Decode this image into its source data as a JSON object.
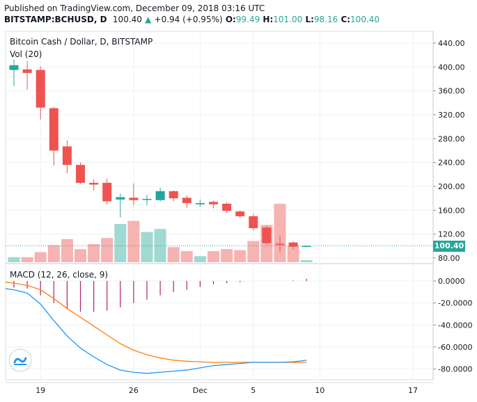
{
  "header": {
    "published": "Published on TradingView.com, December 09, 2018 03:16 UTC",
    "symbol": "BITSTAMP:BCHUSD, D",
    "last": "100.40",
    "change_arrow": "▲",
    "change": "+0.94 (+0.95%)",
    "o_label": "O:",
    "o_value": "99.49",
    "h_label": "H:",
    "h_value": "101.00",
    "l_label": "L:",
    "l_value": "98.16",
    "c_label": "C:",
    "c_value": "100.40"
  },
  "colors": {
    "up": "#26a69a",
    "down": "#ef5350",
    "vol_up": "#9fd9d2",
    "vol_down": "#f7b2b2",
    "macd": "#2196f3",
    "signal": "#ff7f0e",
    "hist": "#b0206a",
    "grid": "#eef0f3"
  },
  "logo_icon": "tradingview-logo-icon",
  "chart_data": [
    {
      "type": "candlestick",
      "title": "Bitcoin Cash / Dollar, D, BITSTAMP",
      "y_ticks": [
        "440.00",
        "400.00",
        "360.00",
        "320.00",
        "280.00",
        "240.00",
        "200.00",
        "160.00",
        "120.00",
        "80.00"
      ],
      "ylim": [
        72,
        448
      ],
      "last_price_label": "100.40",
      "x_ticks": [
        {
          "label": "19",
          "i": 2
        },
        {
          "label": "26",
          "i": 9
        },
        {
          "label": "Dec",
          "i": 14
        },
        {
          "label": "5",
          "i": 18
        },
        {
          "label": "10",
          "i": 23
        },
        {
          "label": "17",
          "i": 30
        }
      ],
      "candles": [
        {
          "date": "2018-11-17",
          "o": 395,
          "h": 412,
          "l": 368,
          "c": 403
        },
        {
          "date": "2018-11-18",
          "o": 396,
          "h": 410,
          "l": 362,
          "c": 390
        },
        {
          "date": "2018-11-19",
          "o": 395,
          "h": 401,
          "l": 312,
          "c": 332
        },
        {
          "date": "2018-11-20",
          "o": 331,
          "h": 333,
          "l": 235,
          "c": 260
        },
        {
          "date": "2018-11-21",
          "o": 267,
          "h": 277,
          "l": 222,
          "c": 236
        },
        {
          "date": "2018-11-22",
          "o": 236,
          "h": 240,
          "l": 204,
          "c": 206
        },
        {
          "date": "2018-11-23",
          "o": 206,
          "h": 212,
          "l": 193,
          "c": 203
        },
        {
          "date": "2018-11-24",
          "o": 206,
          "h": 213,
          "l": 170,
          "c": 175
        },
        {
          "date": "2018-11-25",
          "o": 178,
          "h": 188,
          "l": 148,
          "c": 182
        },
        {
          "date": "2018-11-26",
          "o": 181,
          "h": 205,
          "l": 168,
          "c": 177
        },
        {
          "date": "2018-11-27",
          "o": 178,
          "h": 186,
          "l": 168,
          "c": 179
        },
        {
          "date": "2018-11-28",
          "o": 177,
          "h": 198,
          "l": 175,
          "c": 192
        },
        {
          "date": "2018-11-29",
          "o": 192,
          "h": 193,
          "l": 175,
          "c": 180
        },
        {
          "date": "2018-11-30",
          "o": 181,
          "h": 185,
          "l": 164,
          "c": 172
        },
        {
          "date": "2018-12-01",
          "o": 170,
          "h": 178,
          "l": 166,
          "c": 172
        },
        {
          "date": "2018-12-02",
          "o": 174,
          "h": 176,
          "l": 163,
          "c": 170
        },
        {
          "date": "2018-12-03",
          "o": 171,
          "h": 173,
          "l": 156,
          "c": 159
        },
        {
          "date": "2018-12-04",
          "o": 158,
          "h": 160,
          "l": 147,
          "c": 150
        },
        {
          "date": "2018-12-05",
          "o": 150,
          "h": 154,
          "l": 126,
          "c": 130
        },
        {
          "date": "2018-12-06",
          "o": 131,
          "h": 134,
          "l": 103,
          "c": 105
        },
        {
          "date": "2018-12-07",
          "o": 104,
          "h": 118,
          "l": 90,
          "c": 102
        },
        {
          "date": "2018-12-08",
          "o": 106,
          "h": 108,
          "l": 95,
          "c": 99
        },
        {
          "date": "2018-12-09",
          "o": 99.49,
          "h": 101.0,
          "l": 98.16,
          "c": 100.4
        }
      ],
      "volume_label": "Vol (20)",
      "volume": [
        5,
        5,
        10,
        17,
        23,
        13,
        18,
        24,
        38,
        41,
        30,
        33,
        15,
        11,
        6,
        11,
        13,
        12,
        21,
        37,
        58,
        16,
        2
      ]
    },
    {
      "type": "line",
      "title": "MACD (12, 26, close, 9)",
      "y_ticks": [
        "0.0000",
        "-20.0000",
        "-40.0000",
        "-60.0000",
        "-80.0000"
      ],
      "ylim": [
        -86,
        5
      ],
      "series": [],
      "macd": [
        -8,
        -11,
        -21,
        -36,
        -50,
        -61,
        -69,
        -76,
        -81,
        -83,
        -84,
        -83,
        -82,
        -81,
        -79,
        -77,
        -76,
        -75,
        -74,
        -74,
        -74,
        -73.5,
        -72
      ],
      "signal": [
        -2,
        -4,
        -8,
        -16,
        -25,
        -33,
        -41,
        -49,
        -57,
        -63,
        -67,
        -70,
        -72,
        -73,
        -73.5,
        -74,
        -74,
        -74,
        -74,
        -74,
        -74,
        -74,
        -74
      ],
      "histogram": [
        -6,
        -7,
        -13,
        -20,
        -25,
        -28,
        -28,
        -27,
        -24,
        -20,
        -17,
        -13,
        -10,
        -8,
        -5.5,
        -3,
        -2,
        -1,
        0,
        0,
        0,
        0.5,
        2
      ]
    }
  ]
}
